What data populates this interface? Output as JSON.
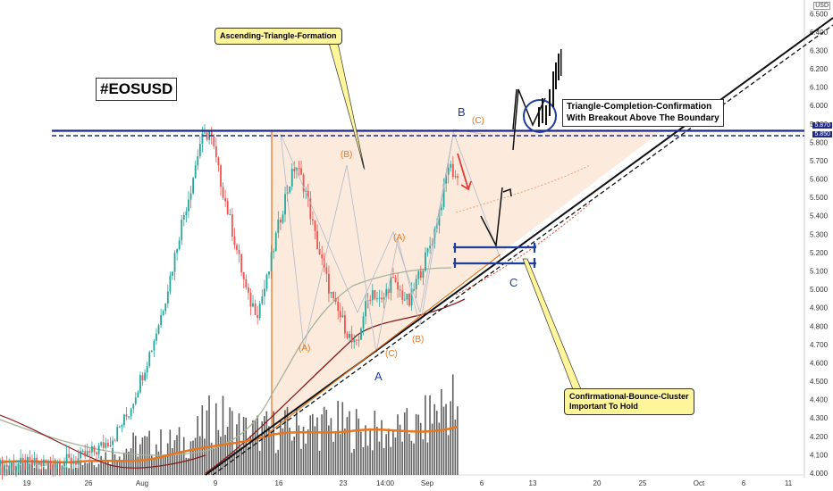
{
  "currency": "USD",
  "ticker_label": "#EOSUSD",
  "callouts": {
    "triangle": "Ascending-Triangle-Formation",
    "bounce_line1": "Confirmational-Bounce-Cluster",
    "bounce_line2": "Important To Hold",
    "breakout_line1": "Triangle-Completion-Confirmation",
    "breakout_line2": "With Breakout Above The Boundary"
  },
  "price_tags": {
    "upper": "5.870",
    "lower": "5.850"
  },
  "wave_labels": {
    "orange": [
      "(A)",
      "(B)",
      "(C)",
      "(A)",
      "(B)",
      "(C)"
    ],
    "blue": [
      "A",
      "B",
      "C"
    ]
  },
  "colors": {
    "up": "#26a69a",
    "down": "#ef5350",
    "volume": "#444444",
    "resistance": "#1f2a8a",
    "triangle_fill": "#fbe3cf",
    "ma_slow": "#8b1a1a",
    "ma_fast": "#a6b39a",
    "orange": "#e8761e",
    "callout_bg": "#fff59a"
  },
  "chart_data": {
    "type": "candlestick",
    "symbol": "EOSUSD",
    "y_axis": {
      "ticks": [
        "6.500",
        "6.400",
        "6.300",
        "6.200",
        "6.100",
        "6.000",
        "5.900",
        "5.800",
        "5.700",
        "5.600",
        "5.500",
        "5.400",
        "5.300",
        "5.200",
        "5.100",
        "5.000",
        "4.900",
        "4.800",
        "4.700",
        "4.600",
        "4.500",
        "4.400",
        "4.300",
        "4.200",
        "4.100",
        "4.000"
      ],
      "range": [
        3.99,
        6.55
      ]
    },
    "x_axis": {
      "ticks": [
        "19",
        "26",
        "Aug",
        "9",
        "16",
        "23",
        "14:00",
        "Sep",
        "6",
        "13",
        "20",
        "25",
        "Oct",
        "6",
        "11"
      ]
    },
    "resistance_levels": [
      5.87,
      5.85
    ],
    "bounce_zone": [
      5.15,
      5.24
    ],
    "price_path": [
      [
        0,
        4.04
      ],
      [
        8,
        4.05
      ],
      [
        16,
        4.07
      ],
      [
        20,
        4.12
      ],
      [
        24,
        4.2
      ],
      [
        27,
        4.33
      ],
      [
        30,
        4.55
      ],
      [
        32,
        4.7
      ],
      [
        34,
        4.88
      ],
      [
        36,
        5.1
      ],
      [
        38,
        5.35
      ],
      [
        40,
        5.55
      ],
      [
        42,
        5.8
      ],
      [
        44,
        5.86
      ],
      [
        46,
        5.62
      ],
      [
        48,
        5.4
      ],
      [
        50,
        5.18
      ],
      [
        52,
        4.95
      ],
      [
        54,
        4.88
      ],
      [
        56,
        5.05
      ],
      [
        58,
        5.3
      ],
      [
        60,
        5.52
      ],
      [
        62,
        5.68
      ],
      [
        64,
        5.55
      ],
      [
        66,
        5.3
      ],
      [
        68,
        5.1
      ],
      [
        70,
        4.92
      ],
      [
        72,
        4.82
      ],
      [
        74,
        4.7
      ],
      [
        75,
        4.68
      ],
      [
        76,
        4.85
      ],
      [
        78,
        5.0
      ],
      [
        80,
        4.92
      ],
      [
        82,
        5.05
      ],
      [
        84,
        4.98
      ],
      [
        86,
        4.92
      ],
      [
        87,
        5.02
      ],
      [
        89,
        5.15
      ],
      [
        91,
        5.3
      ],
      [
        93,
        5.52
      ],
      [
        94,
        5.68
      ],
      [
        96,
        5.6
      ]
    ],
    "volume_profile": [
      [
        0,
        0.1
      ],
      [
        10,
        0.12
      ],
      [
        20,
        0.18
      ],
      [
        28,
        0.35
      ],
      [
        40,
        0.4
      ],
      [
        45,
        0.7
      ],
      [
        52,
        0.5
      ],
      [
        60,
        0.55
      ],
      [
        70,
        0.6
      ],
      [
        80,
        0.5
      ],
      [
        88,
        0.55
      ],
      [
        92,
        0.8
      ],
      [
        95,
        0.9
      ],
      [
        96,
        0.6
      ]
    ]
  }
}
